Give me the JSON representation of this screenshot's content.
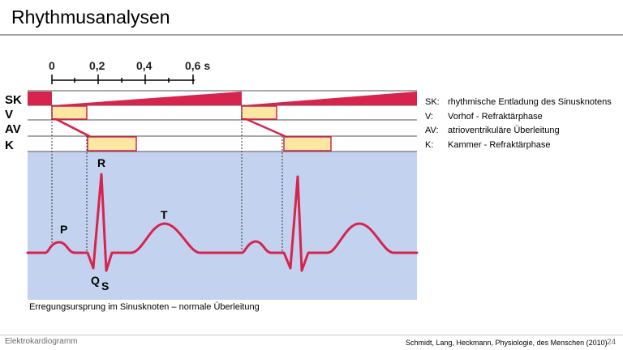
{
  "title": "Rhythmusanalysen",
  "time_axis": {
    "ticks": [
      "0",
      "0,2",
      "0,4",
      "0,6 s"
    ]
  },
  "row_labels": [
    "SK",
    "V",
    "AV",
    "K"
  ],
  "wave_labels": {
    "p": "P",
    "q": "Q",
    "r": "R",
    "s": "S",
    "t": "T"
  },
  "legend": [
    {
      "key": "SK:",
      "text": "rhythmische Entladung des Sinusknotens"
    },
    {
      "key": "V:",
      "text": "Vorhof - Refraktärphase"
    },
    {
      "key": "AV:",
      "text": "atrioventrikuläre Überleitung"
    },
    {
      "key": "K:",
      "text": "Kammer - Refraktärphase"
    }
  ],
  "caption": "Erregungsursprung im Sinusknoten – normale Überleitung",
  "footer": {
    "topic": "Elektrokardiogramm",
    "source": "Schmidt, Lang, Heckmann, Physiologie, des Menschen (2010)",
    "page": "24"
  },
  "colors": {
    "ecg_trace": "#d6244e",
    "ecg_background": "#c3d3ef",
    "refractory_fill": "#fde7a2",
    "sk_fill": "#d6244e"
  }
}
